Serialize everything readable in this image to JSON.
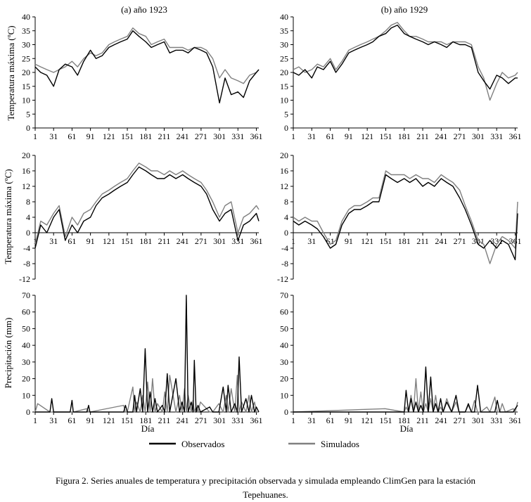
{
  "caption": {
    "line1": "Figura 2. Series anuales de temperatura y precipitación observada y simulada empleando ClimGen para la estación",
    "line2": "Tepehuanes."
  },
  "legend": {
    "observed": "Observados",
    "simulated": "Simulados",
    "observed_color": "#000000",
    "simulated_color": "#808080"
  },
  "columns": [
    {
      "title": "(a) año 1923"
    },
    {
      "title": "(b) año 1929"
    }
  ],
  "rows": [
    {
      "ylabel": "Temperatura máxima (ºC)"
    },
    {
      "ylabel": "Temperatura máxima (ºC)"
    },
    {
      "ylabel": "Precipitación (mm)"
    }
  ],
  "xlabel": "Día",
  "chart_data": [
    {
      "type": "line",
      "panel": "(a) año 1923",
      "variable": "tmax",
      "ylabel": "Temperatura máxima (ºC)",
      "xlim": [
        1,
        365
      ],
      "ylim": [
        0,
        40
      ],
      "xticks": [
        1,
        31,
        61,
        91,
        121,
        151,
        181,
        211,
        241,
        271,
        301,
        331,
        361
      ],
      "yticks": [
        0,
        5,
        10,
        15,
        20,
        25,
        30,
        35,
        40
      ],
      "x": [
        1,
        10,
        20,
        31,
        40,
        50,
        61,
        70,
        80,
        91,
        100,
        110,
        121,
        130,
        140,
        151,
        160,
        170,
        181,
        190,
        200,
        211,
        220,
        230,
        241,
        250,
        260,
        271,
        280,
        290,
        301,
        310,
        320,
        331,
        340,
        350,
        361,
        365
      ],
      "series": [
        {
          "name": "Observados",
          "values": [
            22,
            20,
            19,
            15,
            21,
            23,
            22,
            19,
            24,
            28,
            25,
            26,
            29,
            30,
            31,
            32,
            35,
            33,
            31,
            29,
            30,
            31,
            27,
            28,
            28,
            27,
            29,
            28,
            27,
            22,
            9,
            18,
            12,
            13,
            11,
            17,
            20,
            21
          ]
        },
        {
          "name": "Simulados",
          "values": [
            23,
            22,
            21,
            20,
            21,
            22,
            24,
            22,
            25,
            27,
            26,
            27,
            30,
            31,
            32,
            33,
            36,
            34,
            33,
            30,
            31,
            32,
            29,
            29,
            29,
            28,
            29,
            29,
            28,
            25,
            18,
            21,
            18,
            17,
            16,
            19,
            20,
            21
          ]
        }
      ]
    },
    {
      "type": "line",
      "panel": "(b) año 1929",
      "variable": "tmax",
      "ylabel": "",
      "xlim": [
        1,
        365
      ],
      "ylim": [
        0,
        40
      ],
      "xticks": [
        1,
        31,
        61,
        91,
        121,
        151,
        181,
        211,
        241,
        271,
        301,
        331,
        361
      ],
      "yticks": [
        0,
        5,
        10,
        15,
        20,
        25,
        30,
        35,
        40
      ],
      "x": [
        1,
        10,
        20,
        31,
        40,
        50,
        61,
        70,
        80,
        91,
        100,
        110,
        121,
        130,
        140,
        151,
        160,
        170,
        181,
        190,
        200,
        211,
        220,
        230,
        241,
        250,
        260,
        271,
        280,
        290,
        301,
        310,
        320,
        331,
        340,
        350,
        361,
        365
      ],
      "series": [
        {
          "name": "Observados",
          "values": [
            20,
            19,
            21,
            18,
            22,
            21,
            24,
            20,
            23,
            27,
            28,
            29,
            30,
            31,
            33,
            34,
            36,
            37,
            34,
            33,
            32,
            31,
            30,
            31,
            30,
            29,
            31,
            30,
            30,
            29,
            20,
            17,
            14,
            19,
            18,
            16,
            18,
            18
          ]
        },
        {
          "name": "Simulados",
          "values": [
            21,
            22,
            20,
            21,
            23,
            22,
            25,
            21,
            24,
            28,
            29,
            30,
            31,
            32,
            33,
            35,
            37,
            38,
            35,
            33,
            33,
            32,
            31,
            31,
            31,
            30,
            31,
            31,
            31,
            30,
            22,
            18,
            10,
            16,
            20,
            18,
            19,
            20
          ]
        }
      ]
    },
    {
      "type": "line",
      "panel": "(a) año 1923",
      "variable": "tmin",
      "ylabel": "Temperatura máxima (ºC)",
      "xlim": [
        1,
        365
      ],
      "ylim": [
        -12,
        20
      ],
      "xticks": [
        1,
        31,
        61,
        91,
        121,
        151,
        181,
        211,
        241,
        271,
        301,
        331,
        361
      ],
      "yticks": [
        -12,
        -8,
        -4,
        0,
        4,
        8,
        12,
        16,
        20
      ],
      "x": [
        1,
        10,
        20,
        31,
        40,
        50,
        61,
        70,
        80,
        91,
        100,
        110,
        121,
        130,
        140,
        151,
        160,
        170,
        181,
        190,
        200,
        211,
        220,
        230,
        241,
        250,
        260,
        271,
        280,
        290,
        301,
        310,
        320,
        331,
        340,
        350,
        361,
        365
      ],
      "series": [
        {
          "name": "Observados",
          "values": [
            -4,
            2,
            0,
            4,
            6,
            -2,
            2,
            0,
            3,
            4,
            7,
            9,
            10,
            11,
            12,
            13,
            15,
            17,
            16,
            15,
            14,
            14,
            15,
            14,
            15,
            14,
            13,
            12,
            10,
            6,
            3,
            5,
            6,
            -2,
            2,
            3,
            5,
            3
          ]
        },
        {
          "name": "Simulados",
          "values": [
            -3,
            3,
            2,
            5,
            7,
            -1,
            4,
            2,
            5,
            6,
            8,
            10,
            11,
            12,
            13,
            14,
            16,
            18,
            17,
            16,
            16,
            15,
            16,
            15,
            16,
            15,
            14,
            13,
            11,
            8,
            4,
            7,
            8,
            0,
            4,
            5,
            7,
            6
          ]
        }
      ]
    },
    {
      "type": "line",
      "panel": "(b) año 1929",
      "variable": "tmin",
      "ylabel": "",
      "xlim": [
        1,
        365
      ],
      "ylim": [
        -12,
        20
      ],
      "xticks": [
        1,
        31,
        61,
        91,
        121,
        151,
        181,
        211,
        241,
        271,
        301,
        331,
        361
      ],
      "yticks": [
        -12,
        -8,
        -4,
        0,
        4,
        8,
        12,
        16,
        20
      ],
      "x": [
        1,
        10,
        20,
        31,
        40,
        50,
        61,
        70,
        80,
        91,
        100,
        110,
        121,
        130,
        140,
        151,
        160,
        170,
        181,
        190,
        200,
        211,
        220,
        230,
        241,
        250,
        260,
        271,
        280,
        290,
        301,
        310,
        320,
        331,
        340,
        350,
        361,
        365
      ],
      "series": [
        {
          "name": "Observados",
          "values": [
            3,
            2,
            3,
            2,
            1,
            -1,
            -4,
            -3,
            2,
            5,
            6,
            6,
            7,
            8,
            8,
            15,
            14,
            13,
            14,
            13,
            14,
            12,
            13,
            12,
            14,
            13,
            12,
            9,
            6,
            2,
            -3,
            -4,
            -2,
            -4,
            -2,
            -3,
            -7,
            5
          ]
        },
        {
          "name": "Simulados",
          "values": [
            4,
            3,
            4,
            3,
            3,
            0,
            -3,
            -2,
            3,
            6,
            7,
            7,
            8,
            9,
            9,
            16,
            15,
            15,
            15,
            14,
            15,
            14,
            14,
            13,
            15,
            14,
            13,
            11,
            7,
            3,
            -2,
            -3,
            -8,
            -3,
            -1,
            -2,
            -4,
            8
          ]
        }
      ]
    },
    {
      "type": "line",
      "panel": "(a) año 1923",
      "variable": "precip",
      "ylabel": "Precipitación (mm)",
      "xlim": [
        1,
        365
      ],
      "ylim": [
        0,
        70
      ],
      "xticks": [
        1,
        31,
        61,
        91,
        121,
        151,
        181,
        211,
        241,
        271,
        301,
        331,
        361
      ],
      "yticks": [
        0,
        10,
        20,
        30,
        40,
        50,
        60,
        70
      ],
      "x": [
        1,
        5,
        25,
        28,
        31,
        58,
        61,
        63,
        85,
        88,
        90,
        145,
        148,
        151,
        160,
        163,
        166,
        172,
        176,
        180,
        184,
        188,
        192,
        196,
        200,
        208,
        212,
        216,
        220,
        230,
        236,
        240,
        244,
        247,
        250,
        255,
        258,
        260,
        263,
        266,
        270,
        285,
        290,
        300,
        307,
        312,
        315,
        320,
        326,
        330,
        333,
        337,
        344,
        349,
        353,
        358,
        361,
        365
      ],
      "series": [
        {
          "name": "Observados",
          "values": [
            0,
            0,
            0,
            8,
            0,
            0,
            7,
            0,
            0,
            4,
            0,
            0,
            4,
            0,
            0,
            10,
            0,
            14,
            0,
            38,
            0,
            12,
            0,
            8,
            0,
            4,
            0,
            23,
            0,
            20,
            0,
            6,
            0,
            70,
            0,
            6,
            0,
            31,
            0,
            4,
            0,
            3,
            0,
            0,
            15,
            0,
            16,
            0,
            5,
            0,
            33,
            0,
            8,
            0,
            10,
            0,
            3,
            0
          ]
        },
        {
          "name": "Simulados",
          "values": [
            0,
            5,
            0,
            0,
            0,
            0,
            0,
            0,
            2,
            0,
            0,
            4,
            0,
            0,
            15,
            0,
            6,
            0,
            10,
            0,
            18,
            0,
            20,
            0,
            5,
            0,
            12,
            0,
            22,
            0,
            10,
            0,
            14,
            0,
            10,
            0,
            7,
            0,
            3,
            0,
            6,
            0,
            0,
            5,
            0,
            10,
            0,
            14,
            0,
            22,
            0,
            6,
            0,
            10,
            0,
            6,
            0,
            0
          ]
        }
      ]
    },
    {
      "type": "line",
      "panel": "(b) año 1929",
      "variable": "precip",
      "ylabel": "",
      "xlim": [
        1,
        365
      ],
      "ylim": [
        0,
        70
      ],
      "xticks": [
        1,
        31,
        61,
        91,
        121,
        151,
        181,
        211,
        241,
        271,
        301,
        331,
        361
      ],
      "yticks": [
        0,
        10,
        20,
        30,
        40,
        50,
        60,
        70
      ],
      "x": [
        1,
        150,
        181,
        184,
        188,
        192,
        196,
        200,
        204,
        208,
        212,
        216,
        220,
        224,
        228,
        232,
        236,
        240,
        244,
        250,
        258,
        265,
        270,
        280,
        285,
        290,
        295,
        300,
        305,
        315,
        320,
        328,
        332,
        336,
        340,
        345,
        358,
        361,
        365
      ],
      "series": [
        {
          "name": "Observados",
          "values": [
            0,
            0,
            0,
            13,
            0,
            8,
            0,
            6,
            0,
            4,
            0,
            27,
            0,
            21,
            0,
            5,
            0,
            8,
            0,
            6,
            0,
            10,
            0,
            0,
            5,
            0,
            0,
            16,
            0,
            0,
            0,
            0,
            7,
            0,
            0,
            0,
            0,
            2,
            4
          ]
        },
        {
          "name": "Simulados",
          "values": [
            0,
            2,
            0,
            3,
            0,
            10,
            0,
            20,
            0,
            12,
            0,
            5,
            0,
            8,
            0,
            10,
            0,
            3,
            0,
            8,
            0,
            6,
            0,
            0,
            4,
            0,
            7,
            0,
            0,
            3,
            0,
            9,
            0,
            0,
            5,
            0,
            2,
            0,
            6
          ]
        }
      ]
    }
  ]
}
